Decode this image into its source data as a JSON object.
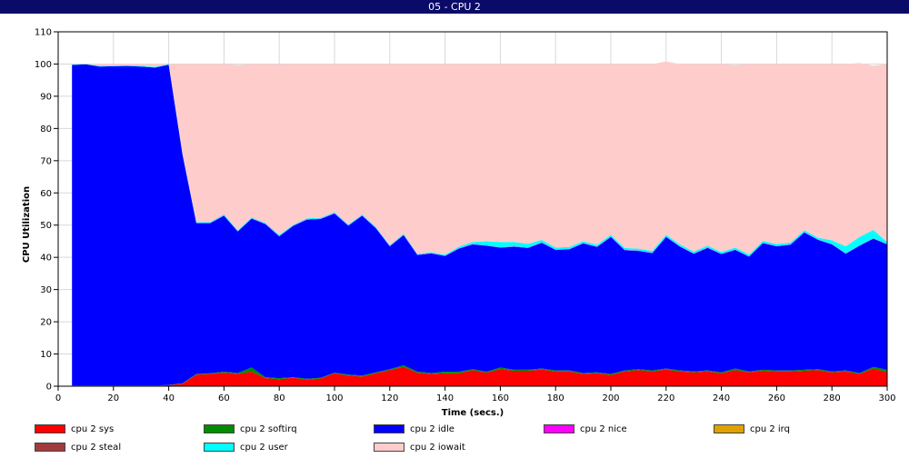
{
  "window": {
    "title": "05 - CPU 2"
  },
  "chart_data": {
    "type": "area",
    "stacked": true,
    "title": "05 - CPU 2",
    "xlabel": "Time (secs.)",
    "ylabel": "CPU Utilization",
    "xlim": [
      0,
      300
    ],
    "ylim": [
      0,
      110
    ],
    "xticks": [
      0,
      20,
      40,
      60,
      80,
      100,
      120,
      140,
      160,
      180,
      200,
      220,
      240,
      260,
      280,
      300
    ],
    "yticks": [
      0,
      10,
      20,
      30,
      40,
      50,
      60,
      70,
      80,
      90,
      100,
      110
    ],
    "grid": true,
    "legend_position": "bottom",
    "x": [
      5,
      10,
      15,
      20,
      25,
      30,
      35,
      40,
      45,
      50,
      55,
      60,
      65,
      70,
      75,
      80,
      85,
      90,
      95,
      100,
      105,
      110,
      115,
      120,
      125,
      130,
      135,
      140,
      145,
      150,
      155,
      160,
      165,
      170,
      175,
      180,
      185,
      190,
      195,
      200,
      205,
      210,
      215,
      220,
      225,
      230,
      235,
      240,
      245,
      250,
      255,
      260,
      265,
      270,
      275,
      280,
      285,
      290,
      295,
      300
    ],
    "series": [
      {
        "name": "cpu 2 sys",
        "color": "#ff0000",
        "values": [
          0.1,
          0.1,
          0.1,
          0.1,
          0.1,
          0.1,
          0.1,
          0.3,
          0.8,
          3.6,
          3.8,
          4.2,
          3.8,
          4.5,
          2.5,
          2.2,
          2.6,
          2.0,
          2.4,
          4.0,
          3.3,
          3.0,
          4.0,
          5.0,
          6.0,
          4.2,
          3.8,
          4.0,
          4.0,
          5.0,
          4.2,
          5.3,
          4.8,
          4.8,
          5.2,
          4.6,
          4.6,
          3.8,
          4.0,
          3.5,
          4.6,
          5.0,
          4.6,
          5.2,
          4.6,
          4.3,
          4.6,
          4.0,
          5.0,
          4.3,
          4.8,
          4.6,
          4.6,
          4.8,
          5.0,
          4.3,
          4.6,
          3.8,
          5.5,
          4.3
        ]
      },
      {
        "name": "cpu 2 softirq",
        "color": "#008c00",
        "values": [
          0.1,
          0.1,
          0.1,
          0.1,
          0.1,
          0.1,
          0.1,
          0.1,
          0.1,
          0.2,
          0.2,
          0.3,
          0.3,
          1.3,
          0.3,
          0.3,
          0.2,
          0.3,
          0.2,
          0.2,
          0.3,
          0.3,
          0.3,
          0.3,
          0.5,
          0.3,
          0.3,
          0.5,
          0.5,
          0.3,
          0.3,
          0.5,
          0.3,
          0.3,
          0.3,
          0.3,
          0.3,
          0.3,
          0.3,
          0.3,
          0.3,
          0.3,
          0.3,
          0.3,
          0.3,
          0.3,
          0.3,
          0.3,
          0.5,
          0.3,
          0.3,
          0.3,
          0.3,
          0.3,
          0.3,
          0.3,
          0.3,
          0.3,
          0.5,
          0.8
        ]
      },
      {
        "name": "cpu 2 idle",
        "color": "#0000ff",
        "values": [
          99.5,
          99.7,
          99.0,
          99.1,
          99.2,
          99.0,
          98.7,
          99.4,
          71.0,
          46.8,
          46.6,
          48.4,
          43.9,
          46.2,
          47.5,
          44.0,
          46.9,
          49.4,
          49.3,
          49.4,
          46.2,
          49.6,
          44.7,
          38.1,
          40.4,
          36.2,
          37.1,
          35.9,
          38.2,
          38.7,
          39.1,
          37.2,
          38.2,
          37.8,
          39.0,
          37.4,
          37.6,
          40.2,
          38.9,
          42.5,
          37.3,
          36.7,
          36.4,
          40.8,
          38.4,
          36.5,
          38.0,
          36.7,
          36.8,
          35.6,
          39.3,
          38.5,
          39.0,
          42.6,
          40.1,
          39.4,
          36.2,
          39.5,
          39.8,
          38.9
        ]
      },
      {
        "name": "cpu 2 nice",
        "color": "#ff00ff",
        "values": [
          0,
          0,
          0,
          0,
          0,
          0,
          0,
          0,
          0,
          0.1,
          0.1,
          0.1,
          0.1,
          0.1,
          0.1,
          0.1,
          0.1,
          0.1,
          0.1,
          0.1,
          0.1,
          0.1,
          0.1,
          0.1,
          0.1,
          0.1,
          0.1,
          0.1,
          0.1,
          0.1,
          0.1,
          0.1,
          0.1,
          0.1,
          0.1,
          0.1,
          0.1,
          0.1,
          0.1,
          0.1,
          0.1,
          0.1,
          0.1,
          0.1,
          0.1,
          0.1,
          0.1,
          0.1,
          0.1,
          0.1,
          0.1,
          0.1,
          0.1,
          0.1,
          0.1,
          0.1,
          0.1,
          0.1,
          0.1,
          0.1
        ]
      },
      {
        "name": "cpu 2 irq",
        "color": "#e0a000",
        "values": [
          0,
          0,
          0,
          0,
          0,
          0,
          0,
          0,
          0,
          0,
          0,
          0,
          0,
          0,
          0,
          0,
          0,
          0,
          0,
          0,
          0,
          0,
          0,
          0,
          0,
          0,
          0,
          0,
          0,
          0,
          0,
          0,
          0,
          0,
          0,
          0,
          0,
          0,
          0,
          0,
          0,
          0,
          0,
          0,
          0,
          0,
          0,
          0,
          0,
          0,
          0,
          0,
          0,
          0,
          0,
          0,
          0,
          0,
          0,
          0
        ]
      },
      {
        "name": "cpu 2 steal",
        "color": "#a03c3c",
        "values": [
          0,
          0,
          0,
          0,
          0,
          0,
          0,
          0,
          0,
          0,
          0,
          0,
          0,
          0,
          0,
          0,
          0,
          0,
          0,
          0,
          0,
          0,
          0,
          0,
          0,
          0,
          0,
          0,
          0,
          0,
          0,
          0,
          0,
          0,
          0,
          0,
          0,
          0,
          0,
          0,
          0,
          0,
          0,
          0,
          0,
          0,
          0,
          0,
          0,
          0,
          0,
          0,
          0,
          0,
          0,
          0,
          0,
          0,
          0,
          0
        ]
      },
      {
        "name": "cpu 2 user",
        "color": "#00ffff",
        "values": [
          0.2,
          0.1,
          0.3,
          0.2,
          0.2,
          0.3,
          0.2,
          0.2,
          0.2,
          0.3,
          0.3,
          0.3,
          0.3,
          0.3,
          0.3,
          0.4,
          0.3,
          0.3,
          0.3,
          0.3,
          0.3,
          0.3,
          0.3,
          0.3,
          0.3,
          0.3,
          0.3,
          0.3,
          0.5,
          0.7,
          1.3,
          1.7,
          1.4,
          1.2,
          0.8,
          0.6,
          0.6,
          0.6,
          0.6,
          0.6,
          0.6,
          0.6,
          0.6,
          0.6,
          0.6,
          0.6,
          0.6,
          0.6,
          0.6,
          0.6,
          0.6,
          0.6,
          0.6,
          0.6,
          0.6,
          1.2,
          2.2,
          2.6,
          2.6,
          0.6
        ]
      },
      {
        "name": "cpu 2 iowait",
        "color": "#ffcccc",
        "values": [
          0.1,
          0.1,
          0.5,
          0.5,
          0.4,
          0.5,
          0.9,
          0.0,
          27.9,
          49.0,
          49.0,
          46.7,
          51.3,
          47.6,
          49.3,
          52.9,
          49.9,
          47.9,
          47.7,
          46.0,
          49.8,
          46.7,
          50.6,
          56.2,
          52.7,
          58.9,
          58.4,
          59.2,
          56.7,
          55.2,
          55.0,
          55.2,
          55.2,
          55.8,
          54.6,
          57.0,
          56.8,
          55.0,
          56.1,
          53.0,
          57.1,
          57.3,
          58.0,
          53.8,
          56.0,
          58.2,
          56.4,
          58.3,
          56.7,
          59.1,
          54.9,
          55.9,
          55.4,
          51.6,
          53.9,
          54.7,
          56.6,
          54.0,
          51.0,
          55.3
        ]
      }
    ]
  }
}
